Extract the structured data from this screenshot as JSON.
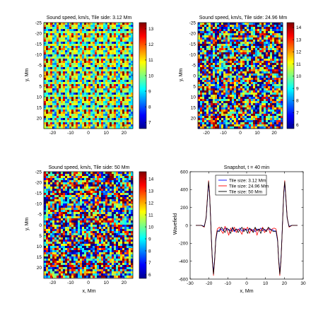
{
  "chart_data": [
    {
      "type": "heatmap",
      "title": "Sound speed, km/s, Tile side: 3.12 Mm",
      "xlabel": "",
      "ylabel": "y, Mm",
      "xlim": [
        -25,
        25
      ],
      "ylim": [
        -25,
        25
      ],
      "xticks": [
        -20,
        -10,
        0,
        10,
        20
      ],
      "yticks": [
        -25,
        -20,
        -15,
        -10,
        -5,
        0,
        5,
        10,
        15,
        20
      ],
      "colorbar": {
        "range": [
          6.6,
          13.4
        ],
        "ticks": [
          7,
          8,
          9,
          10,
          11,
          12,
          13
        ]
      },
      "pattern": "periodic tiles, side 3.12 Mm"
    },
    {
      "type": "heatmap",
      "title": "Sound speed, km/s, Tile side: 24.96 Mm",
      "xlabel": "",
      "ylabel": "y, Mm",
      "xlim": [
        -25,
        25
      ],
      "ylim": [
        -25,
        25
      ],
      "xticks": [
        -20,
        -10,
        0,
        10,
        20
      ],
      "yticks": [
        -25,
        -20,
        -15,
        -10,
        -5,
        0,
        5,
        10,
        15,
        20
      ],
      "colorbar": {
        "range": [
          5.7,
          14.4
        ],
        "ticks": [
          6,
          7,
          8,
          9,
          10,
          11,
          12,
          13,
          14
        ]
      },
      "pattern": "random fine-grained noise"
    },
    {
      "type": "heatmap",
      "title": "Sound speed, km/s, Tile side: 50 Mm",
      "xlabel": "x, Mm",
      "ylabel": "y, Mm",
      "xlim": [
        -25,
        25
      ],
      "ylim": [
        -25,
        25
      ],
      "xticks": [
        -20,
        -10,
        0,
        10,
        20
      ],
      "yticks": [
        -25,
        -20,
        -15,
        -10,
        -5,
        0,
        5,
        10,
        15,
        20
      ],
      "colorbar": {
        "range": [
          5.7,
          14.6
        ],
        "ticks": [
          6,
          7,
          8,
          9,
          10,
          11,
          12,
          13,
          14
        ]
      },
      "pattern": "random fine-grained noise"
    },
    {
      "type": "line",
      "title": "Snapshot, t = 40 min",
      "xlabel": "x, Mm",
      "ylabel": "Wavefield",
      "xlim": [
        -30,
        30
      ],
      "ylim": [
        -600,
        600
      ],
      "xticks": [
        -30,
        -20,
        -10,
        0,
        10,
        20,
        30
      ],
      "yticks": [
        -600,
        -400,
        -200,
        0,
        200,
        400,
        600
      ],
      "legend": "top-center",
      "series": [
        {
          "name": "Tile size: 3.12 Mm",
          "color": "#0000ff",
          "x": [
            -27,
            -24,
            -22.5,
            -21.5,
            -20.8,
            -20.2,
            -19.7,
            -19.2,
            -18.7,
            -18.2,
            -17.6,
            -17,
            -16.4,
            -15.6,
            -14.5,
            -13.5,
            -12.5,
            -11.5,
            -10.5,
            -9.5,
            -8.5,
            -7.5,
            -6.5,
            -5.5,
            -4.5,
            -3.5,
            -2.5,
            -1.5,
            -0.5,
            0.5,
            1.5,
            2.5,
            3.5,
            4.5,
            5.5,
            6.5,
            7.5,
            8.5,
            9.5,
            10.5,
            11.5,
            12.5,
            13.5,
            14.5,
            15.6,
            16.4,
            17,
            17.6,
            18.2,
            18.7,
            19.2,
            19.7,
            20.2,
            20.8,
            21.5,
            22.5,
            24,
            27
          ],
          "y": [
            0,
            0,
            -10,
            80,
            300,
            470,
            360,
            120,
            -150,
            -380,
            -530,
            -380,
            -170,
            -70,
            -50,
            -40,
            -60,
            -30,
            -55,
            -45,
            -60,
            -35,
            -70,
            -40,
            -55,
            -30,
            -65,
            -50,
            -40,
            -55,
            -35,
            -60,
            -45,
            -70,
            -40,
            -55,
            -30,
            -60,
            -45,
            -55,
            -35,
            -50,
            -45,
            -60,
            -70,
            -170,
            -380,
            -530,
            -380,
            -150,
            120,
            360,
            470,
            300,
            80,
            -10,
            0,
            0
          ]
        },
        {
          "name": "Tile size: 24.96 Mm",
          "color": "#ff0000",
          "x": [
            -27,
            -24,
            -22.5,
            -21.5,
            -20.8,
            -20.2,
            -19.7,
            -19.2,
            -18.7,
            -18.2,
            -17.6,
            -17,
            -16.4,
            -15.6,
            -14.5,
            -13.5,
            -12.5,
            -11.5,
            -10.5,
            -9.5,
            -8.5,
            -7.5,
            -6.5,
            -5.5,
            -4.5,
            -3.5,
            -2.5,
            -1.5,
            -0.5,
            0.5,
            1.5,
            2.5,
            3.5,
            4.5,
            5.5,
            6.5,
            7.5,
            8.5,
            9.5,
            10.5,
            11.5,
            12.5,
            13.5,
            14.5,
            15.6,
            16.4,
            17,
            17.6,
            18.2,
            18.7,
            19.2,
            19.7,
            20.2,
            20.8,
            21.5,
            22.5,
            24,
            27
          ],
          "y": [
            0,
            0,
            -20,
            90,
            320,
            500,
            380,
            110,
            -160,
            -400,
            -560,
            -400,
            -150,
            -40,
            -20,
            -60,
            -90,
            -10,
            -50,
            -110,
            -30,
            -70,
            -20,
            -80,
            -40,
            -60,
            -100,
            -30,
            -50,
            -20,
            -90,
            -40,
            -70,
            -30,
            -110,
            -40,
            -60,
            -20,
            -80,
            -50,
            -30,
            -90,
            -40,
            -30,
            -40,
            -150,
            -400,
            -560,
            -400,
            -160,
            110,
            380,
            500,
            320,
            90,
            -20,
            0,
            0
          ]
        },
        {
          "name": "Tile size: 50 Mm",
          "color": "#000000",
          "x": [
            -27,
            -24,
            -22.5,
            -21.5,
            -20.8,
            -20.2,
            -19.7,
            -19.2,
            -18.7,
            -18.2,
            -17.6,
            -17,
            -16.4,
            -15.6,
            -14.5,
            -13.5,
            -12.5,
            -11.5,
            -10.5,
            -9.5,
            -8.5,
            -7.5,
            -6.5,
            -5.5,
            -4.5,
            -3.5,
            -2.5,
            -1.5,
            -0.5,
            0.5,
            1.5,
            2.5,
            3.5,
            4.5,
            5.5,
            6.5,
            7.5,
            8.5,
            9.5,
            10.5,
            11.5,
            12.5,
            13.5,
            14.5,
            15.6,
            16.4,
            17,
            17.6,
            18.2,
            18.7,
            19.2,
            19.7,
            20.2,
            20.8,
            21.5,
            22.5,
            24,
            27
          ],
          "y": [
            0,
            0,
            -15,
            85,
            310,
            490,
            370,
            115,
            -155,
            -390,
            -545,
            -390,
            -160,
            -60,
            -70,
            -20,
            -40,
            -80,
            -30,
            -50,
            -90,
            -20,
            -60,
            -40,
            -80,
            -50,
            -20,
            -70,
            -40,
            -90,
            -30,
            -50,
            -80,
            -20,
            -60,
            -40,
            -90,
            -30,
            -50,
            -70,
            -20,
            -40,
            -60,
            -70,
            -60,
            -160,
            -390,
            -545,
            -390,
            -155,
            115,
            370,
            490,
            310,
            85,
            -15,
            0,
            0
          ]
        }
      ]
    }
  ]
}
